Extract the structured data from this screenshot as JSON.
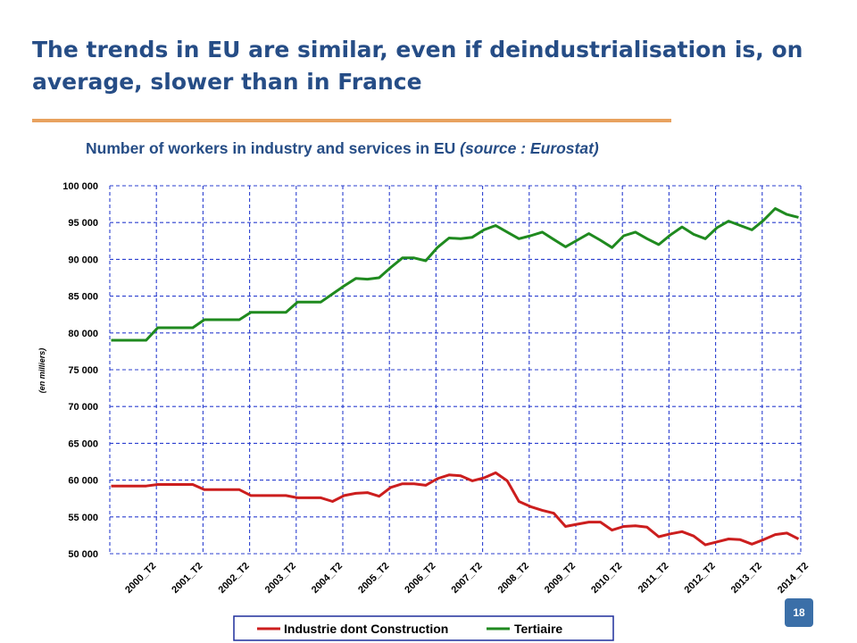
{
  "slide": {
    "title": "The trends in EU are similar, even if deindustrialisation is, on average, slower than in France",
    "page_number": "18",
    "colors": {
      "title": "#264d86",
      "rule": "#e8a25f",
      "badge": "#3b6fa8"
    }
  },
  "chart_data": {
    "type": "line",
    "title_main": "Number of workers in industry and services  in EU ",
    "title_source": "(source : Eurostat)",
    "ylabel": "(en milliers)",
    "xlabel": "",
    "ylim": [
      50000,
      100000
    ],
    "yticks": [
      50000,
      55000,
      60000,
      65000,
      70000,
      75000,
      80000,
      85000,
      90000,
      95000,
      100000
    ],
    "ytick_labels": [
      "50 000",
      "55 000",
      "60 000",
      "65 000",
      "70 000",
      "75 000",
      "80 000",
      "85 000",
      "90 000",
      "95 000",
      "100 000"
    ],
    "xtick_labels": [
      "2000_T2",
      "2001_T2",
      "2002_T2",
      "2003_T2",
      "2004_T2",
      "2005_T2",
      "2006_T2",
      "2007_T2",
      "2008_T2",
      "2009_T2",
      "2010_T2",
      "2011_T2",
      "2012_T2",
      "2013_T2",
      "2014_T2"
    ],
    "grid": true,
    "legend_position": "bottom",
    "series": [
      {
        "name": "Industrie dont Construction",
        "color": "#cc1e1e",
        "values": [
          59200,
          59200,
          59200,
          59200,
          59400,
          59400,
          59400,
          59400,
          58700,
          58700,
          58700,
          58700,
          57900,
          57900,
          57900,
          57900,
          57600,
          57600,
          57600,
          57100,
          57900,
          58200,
          58300,
          57800,
          59000,
          59500,
          59500,
          59300,
          60200,
          60700,
          60600,
          59900,
          60300,
          61000,
          59900,
          57100,
          56400,
          55900,
          55500,
          53700,
          54000,
          54300,
          54300,
          53200,
          53700,
          53800,
          53600,
          52300,
          52700,
          53000,
          52400,
          51200,
          51600,
          52000,
          51900,
          51300,
          51900,
          52600,
          52800,
          52000
        ]
      },
      {
        "name": "Tertiaire",
        "color": "#1f8a1f",
        "values": [
          79000,
          79000,
          79000,
          79000,
          80700,
          80700,
          80700,
          80700,
          81800,
          81800,
          81800,
          81800,
          82800,
          82800,
          82800,
          82800,
          84200,
          84200,
          84200,
          85300,
          86400,
          87400,
          87300,
          87500,
          88900,
          90200,
          90200,
          89800,
          91600,
          92900,
          92800,
          93000,
          94000,
          94600,
          93700,
          92800,
          93200,
          93700,
          92700,
          91700,
          92600,
          93500,
          92600,
          91600,
          93200,
          93700,
          92800,
          92000,
          93300,
          94400,
          93400,
          92800,
          94300,
          95200,
          94600,
          94000,
          95300,
          96900,
          96100,
          95700
        ]
      }
    ]
  }
}
